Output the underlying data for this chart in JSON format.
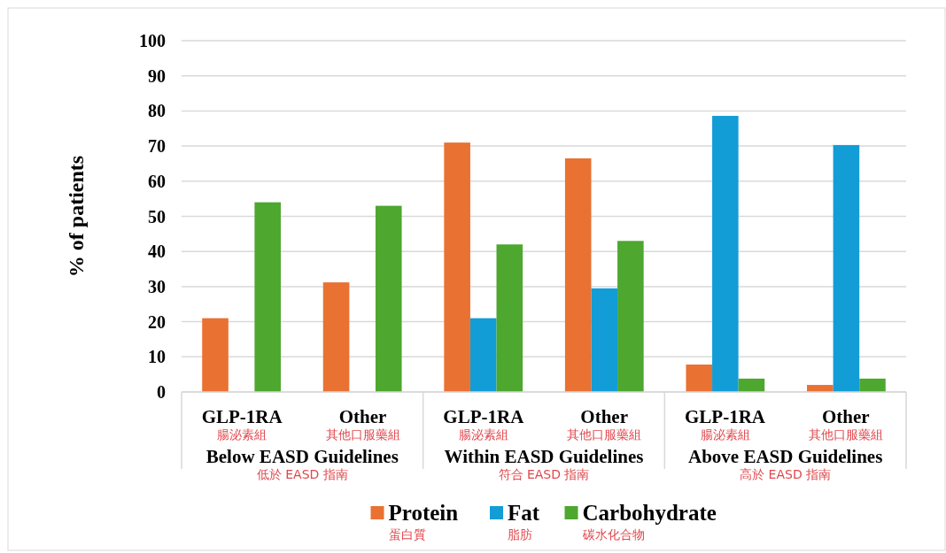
{
  "chart_data": {
    "type": "bar",
    "ylabel": "% of patients",
    "categories": [
      "GLP-1RA\n腸泌素組",
      "Other\n其他口服藥組",
      "GLP-1RA\n腸泌素組",
      "Other\n其他口服藥組",
      "GLP-1RA\n腸泌素組",
      "Other\n其他口服藥組"
    ],
    "series": [
      {
        "name": "Protein\n蛋白質",
        "color": "#e97132",
        "values": [
          21,
          31.2,
          71,
          66.5,
          7.8,
          2
        ]
      },
      {
        "name": "Fat\n脂肪",
        "color": "#129dd6",
        "values": [
          0,
          0,
          21,
          29.5,
          78.6,
          70.3
        ]
      },
      {
        "name": "Carbohydrate\n碳水化合物",
        "color": "#4ea72e",
        "values": [
          54,
          53,
          42,
          43,
          3.8,
          3.8
        ]
      }
    ],
    "annotations": [
      "Below EASD Guidelines\n低於 EASD 指南",
      "Within EASD Guidelines\n符合 EASD 指南",
      "Above EASD Guidelines\n高於 EASD 指南"
    ],
    "ylim": [
      0,
      100
    ],
    "yticks": [
      0,
      10,
      20,
      30,
      40,
      50,
      60,
      70,
      80,
      90,
      100
    ],
    "grid": "y",
    "legend": "bottom"
  }
}
